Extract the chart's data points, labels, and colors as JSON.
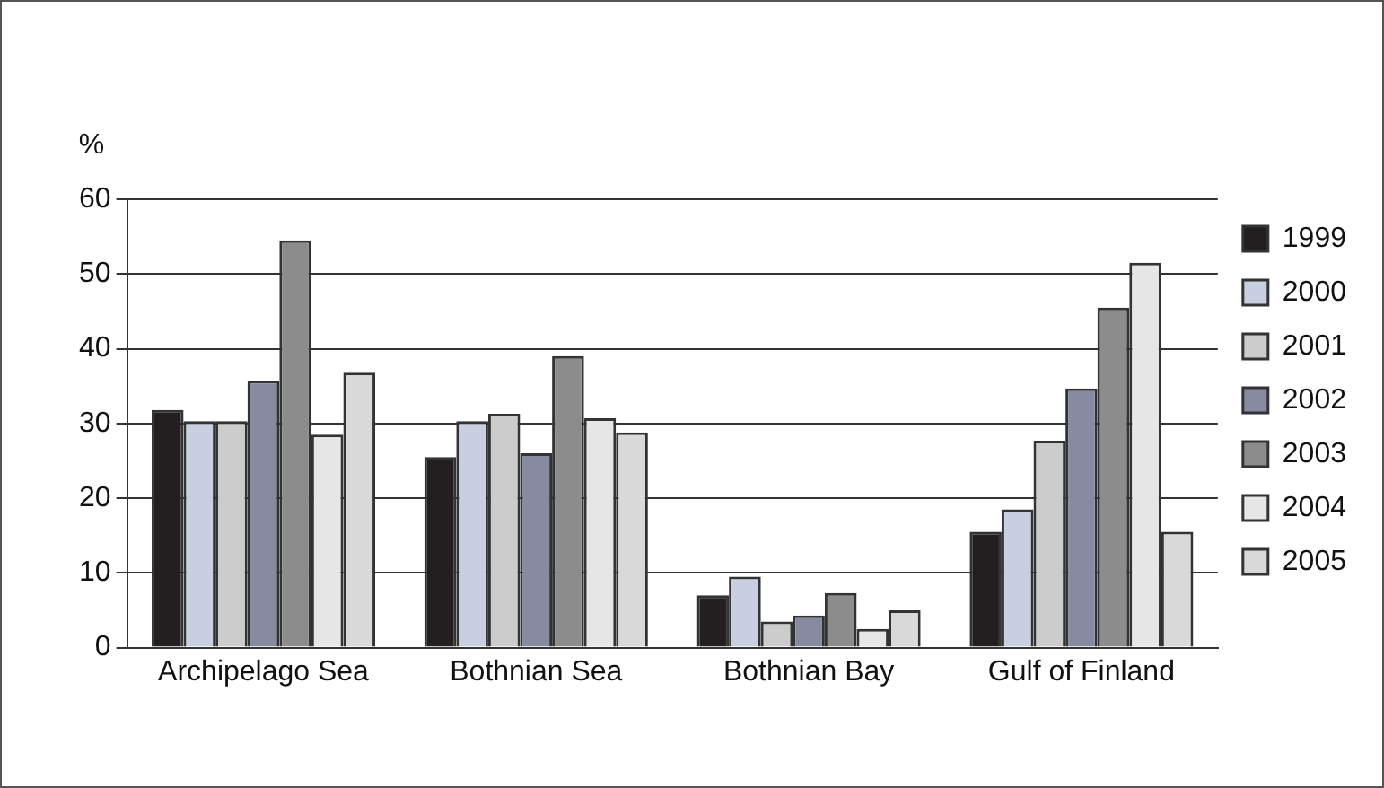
{
  "chart_data": {
    "type": "bar",
    "ylabel": "%",
    "categories": [
      "Archipelago Sea",
      "Bothnian Sea",
      "Bothnian Bay",
      "Gulf of Finland"
    ],
    "series": [
      {
        "name": "1999",
        "color": "#231f20",
        "values": [
          31.8,
          25.5,
          7,
          15.5
        ]
      },
      {
        "name": "2000",
        "color": "#c8cfe0",
        "values": [
          30.3,
          30.3,
          9.5,
          18.5
        ]
      },
      {
        "name": "2001",
        "color": "#cccccc",
        "values": [
          30.3,
          31.3,
          3.5,
          27.7
        ]
      },
      {
        "name": "2002",
        "color": "#878aa0",
        "values": [
          35.7,
          26,
          4.3,
          34.7
        ]
      },
      {
        "name": "2003",
        "color": "#8c8c8c",
        "values": [
          54.5,
          39,
          7.3,
          45.5
        ]
      },
      {
        "name": "2004",
        "color": "#e6e6e6",
        "values": [
          28.5,
          30.7,
          2.5,
          51.5
        ]
      },
      {
        "name": "2005",
        "color": "#d9d9d9",
        "values": [
          36.8,
          28.8,
          5,
          15.5
        ]
      }
    ],
    "ylim": [
      0,
      60
    ],
    "yticks": [
      0,
      10,
      20,
      30,
      40,
      50,
      60
    ],
    "grid": "y",
    "legend": "right"
  }
}
